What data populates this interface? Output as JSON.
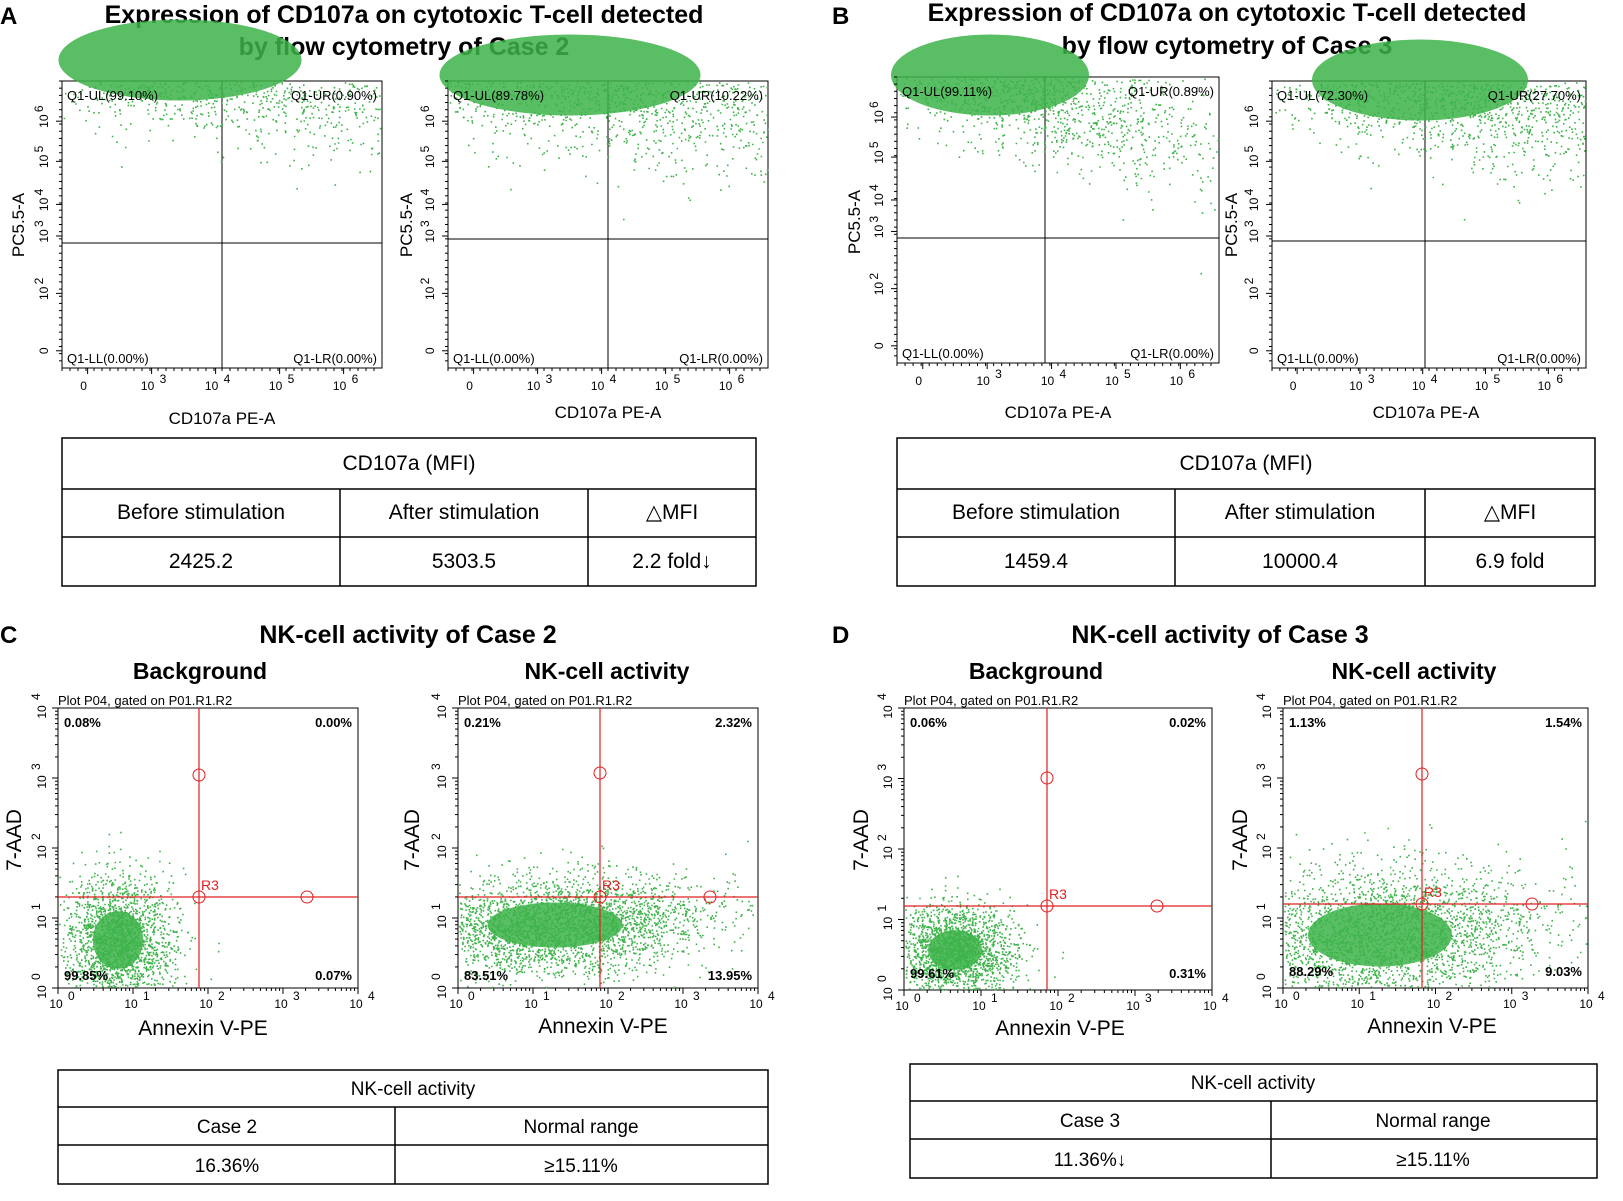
{
  "panels": {
    "A": {
      "letter": "A",
      "title_line1": "Expression of CD107a on cytotoxic T-cell detected",
      "title_line2": "by flow cytometry of Case 2",
      "plots": [
        {
          "q_ul": "Q1-UL(99.10%)",
          "q_ur": "Q1-UR(0.90%)",
          "q_ll": "Q1-LL(0.00%)",
          "q_lr": "Q1-LR(0.00%)",
          "xlabel": "CD107a PE-A",
          "ylabel": "PC5.5-A"
        },
        {
          "q_ul": "Q1-UL(89.78%)",
          "q_ur": "Q1-UR(10.22%)",
          "q_ll": "Q1-LL(0.00%)",
          "q_lr": "Q1-LR(0.00%)",
          "xlabel": "CD107a PE-A",
          "ylabel": "PC5.5-A"
        }
      ],
      "table": {
        "header": "CD107a (MFI)",
        "col1": "Before stimulation",
        "col2": "After stimulation",
        "col3": "△MFI",
        "val1": "2425.2",
        "val2": "5303.5",
        "val3": "2.2 fold↓"
      }
    },
    "B": {
      "letter": "B",
      "title_line1": "Expression of CD107a on cytotoxic T-cell detected",
      "title_line2": "by flow cytometry of Case 3",
      "plots": [
        {
          "q_ul": "Q1-UL(99.11%)",
          "q_ur": "Q1-UR(0.89%)",
          "q_ll": "Q1-LL(0.00%)",
          "q_lr": "Q1-LR(0.00%)",
          "xlabel": "CD107a PE-A",
          "ylabel": "PC5.5-A"
        },
        {
          "q_ul": "Q1-UL(72.30%)",
          "q_ur": "Q1-UR(27.70%)",
          "q_ll": "Q1-LL(0.00%)",
          "q_lr": "Q1-LR(0.00%)",
          "xlabel": "CD107a PE-A",
          "ylabel": "PC5.5-A"
        }
      ],
      "table": {
        "header": "CD107a (MFI)",
        "col1": "Before stimulation",
        "col2": "After stimulation",
        "col3": "△MFI",
        "val1": "1459.4",
        "val2": "10000.4",
        "val3": "6.9 fold"
      }
    },
    "C": {
      "letter": "C",
      "title": "NK-cell activity of Case 2",
      "sub_left": "Background",
      "sub_right": "NK-cell activity",
      "plots": [
        {
          "plot_title": "Plot P04, gated on P01.R1.R2",
          "ul": "0.08%",
          "ur": "0.00%",
          "ll": "99.85%",
          "lr": "0.07%",
          "gate": "R3",
          "xlabel": "Annexin V-PE",
          "ylabel": "7-AAD"
        },
        {
          "plot_title": "Plot P04, gated on P01.R1.R2",
          "ul": "0.21%",
          "ur": "2.32%",
          "ll": "83.51%",
          "lr": "13.95%",
          "gate": "R3",
          "xlabel": "Annexin V-PE",
          "ylabel": "7-AAD"
        }
      ],
      "table": {
        "header": "NK-cell activity",
        "col1": "Case 2",
        "col2": "Normal range",
        "val1": "16.36%",
        "val2": "≥15.11%"
      }
    },
    "D": {
      "letter": "D",
      "title": "NK-cell activity of Case 3",
      "sub_left": "Background",
      "sub_right": "NK-cell activity",
      "plots": [
        {
          "plot_title": "Plot P04, gated on P01.R1.R2",
          "ul": "0.06%",
          "ur": "0.02%",
          "ll": "99.61%",
          "lr": "0.31%",
          "gate": "R3",
          "xlabel": "Annexin V-PE",
          "ylabel": "7-AAD"
        },
        {
          "plot_title": "Plot P04, gated on P01.R1.R2",
          "ul": "1.13%",
          "ur": "1.54%",
          "ll": "88.29%",
          "lr": "9.03%",
          "gate": "R3",
          "xlabel": "Annexin V-PE",
          "ylabel": "7-AAD"
        }
      ],
      "table": {
        "header": "NK-cell activity",
        "col1": "Case 3",
        "col2": "Normal range",
        "val1": "11.36%↓",
        "val2": "≥15.11%"
      }
    }
  },
  "colors": {
    "dots": "#3db34a",
    "gate": "#e02020"
  }
}
